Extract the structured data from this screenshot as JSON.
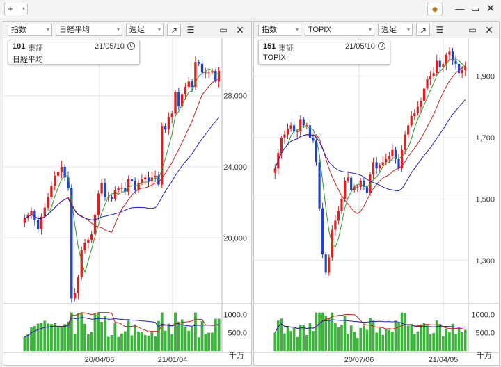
{
  "app": {
    "add_label": "+",
    "gear_icon": "gear-icon",
    "minimize_icon": "minimize-icon",
    "maximize_icon": "maximize-icon",
    "close_icon": "close-icon"
  },
  "panels": [
    {
      "category": "指数",
      "symbol": "日経平均",
      "period": "週足",
      "info": {
        "code": "101",
        "market": "東証",
        "date": "21/05/10",
        "name": "日経平均"
      },
      "price_ticks": [
        "28,000",
        "24,000",
        "20,000"
      ],
      "volume_ticks": [
        "1000.0",
        "500.0"
      ],
      "volume_unit": "千万",
      "date_ticks": [
        "20/04/06",
        "21/01/04"
      ]
    },
    {
      "category": "指数",
      "symbol": "TOPIX",
      "period": "週足",
      "info": {
        "code": "151",
        "market": "東証",
        "date": "21/05/10",
        "name": "TOPIX"
      },
      "price_ticks": [
        "1,900",
        "1,700",
        "1,500",
        "1,300"
      ],
      "volume_ticks": [
        "1000.0",
        "500.0"
      ],
      "volume_unit": "千万",
      "date_ticks": [
        "20/07/06",
        "21/04/05"
      ]
    }
  ],
  "chart_data": [
    {
      "type": "candlestick",
      "title": "日経平均",
      "ylim": [
        17000,
        31000
      ],
      "yticks": [
        20000,
        24000,
        28000
      ],
      "xticks": [
        "20/04/06",
        "21/01/04"
      ],
      "close": [
        21100,
        21300,
        21500,
        21000,
        20500,
        21200,
        21700,
        22300,
        22900,
        23500,
        23700,
        24000,
        23400,
        22800,
        16600,
        16900,
        17800,
        19300,
        19700,
        19900,
        20200,
        21300,
        22500,
        23100,
        22300,
        22300,
        22200,
        22700,
        22800,
        22800,
        22600,
        23300,
        23200,
        22700,
        23100,
        23300,
        23400,
        23200,
        23400,
        23500,
        23000,
        26300,
        26100,
        26800,
        27000,
        28200,
        27400,
        28100,
        28500,
        28800,
        28500,
        29900,
        29800,
        29300,
        29300,
        29300,
        29400,
        28800,
        29400
      ],
      "ma_short_color": "#2a9a2a",
      "ma_mid_color": "#d02020",
      "ma_long_color": "#2020c0",
      "up_color": "#e02020",
      "down_color": "#2040d0",
      "volume_color": "#3cb43c"
    },
    {
      "type": "candlestick",
      "title": "TOPIX",
      "ylim": [
        1200,
        2010
      ],
      "yticks": [
        1300,
        1500,
        1700,
        1900
      ],
      "xticks": [
        "20/07/06",
        "21/04/05"
      ],
      "close": [
        1600,
        1650,
        1700,
        1710,
        1730,
        1740,
        1720,
        1720,
        1760,
        1740,
        1740,
        1700,
        1690,
        1620,
        1470,
        1320,
        1260,
        1310,
        1400,
        1430,
        1460,
        1500,
        1560,
        1570,
        1530,
        1540,
        1540,
        1560,
        1540,
        1520,
        1580,
        1620,
        1600,
        1610,
        1620,
        1630,
        1640,
        1660,
        1630,
        1600,
        1660,
        1710,
        1740,
        1770,
        1780,
        1800,
        1820,
        1860,
        1890,
        1900,
        1910,
        1950,
        1930,
        1940,
        1970,
        1980,
        1950,
        1940,
        1910,
        1920,
        1930
      ],
      "ma_short_color": "#2a9a2a",
      "ma_mid_color": "#d02020",
      "ma_long_color": "#2020c0",
      "up_color": "#e02020",
      "down_color": "#2040d0",
      "volume_color": "#3cb43c"
    }
  ]
}
